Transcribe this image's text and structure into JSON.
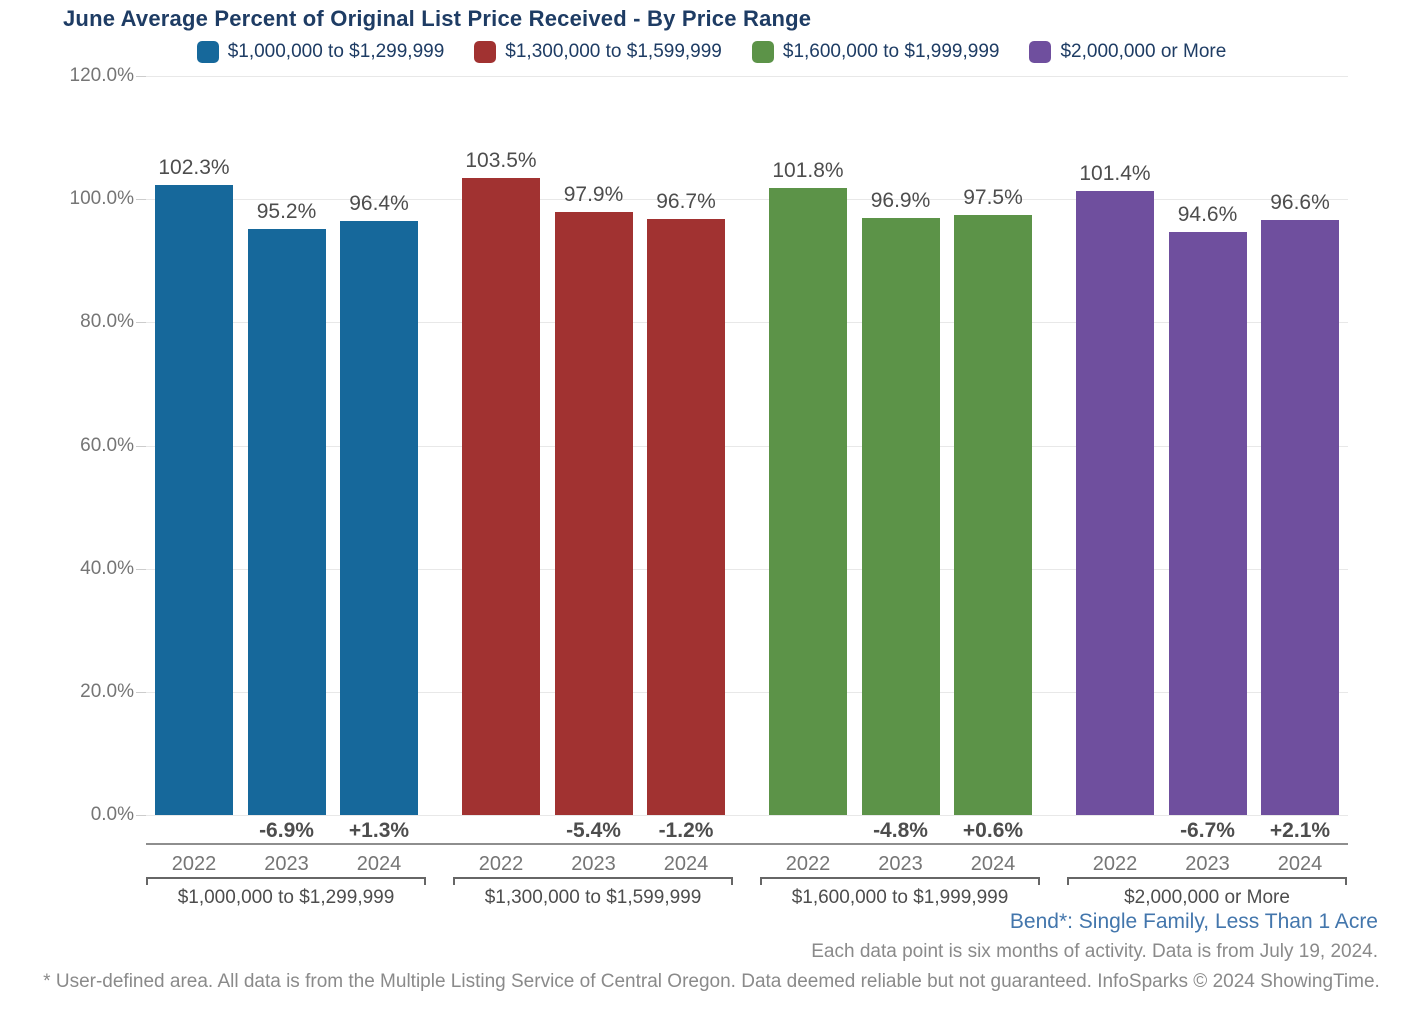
{
  "title": "June Average Percent of Original List Price Received - By Price Range",
  "legend": [
    {
      "label": "$1,000,000 to $1,299,999",
      "color": "#16689b"
    },
    {
      "label": "$1,300,000 to $1,599,999",
      "color": "#a13231"
    },
    {
      "label": "$1,600,000 to $1,999,999",
      "color": "#5c9348"
    },
    {
      "label": "$2,000,000 or More",
      "color": "#6f4f9e"
    }
  ],
  "chart_data": {
    "type": "bar",
    "title": "June Average Percent of Original List Price Received - By Price Range",
    "xlabel": "",
    "ylabel": "",
    "grid": true,
    "legend_position": "top",
    "categories": [
      "2022",
      "2023",
      "2024"
    ],
    "ylim": [
      0,
      120
    ],
    "ytick_step": 20,
    "ytick_labels": [
      "0.0%",
      "20.0%",
      "40.0%",
      "60.0%",
      "80.0%",
      "100.0%",
      "120.0%"
    ],
    "value_suffix": "%",
    "groups": [
      {
        "name": "$1,000,000 to $1,299,999",
        "color": "#16689b",
        "values": [
          102.3,
          95.2,
          96.4
        ],
        "changes": [
          "",
          "-6.9%",
          "+1.3%"
        ]
      },
      {
        "name": "$1,300,000 to $1,599,999",
        "color": "#a13231",
        "values": [
          103.5,
          97.9,
          96.7
        ],
        "changes": [
          "",
          "-5.4%",
          "-1.2%"
        ]
      },
      {
        "name": "$1,600,000 to $1,999,999",
        "color": "#5c9348",
        "values": [
          101.8,
          96.9,
          97.5
        ],
        "changes": [
          "",
          "-4.8%",
          "+0.6%"
        ]
      },
      {
        "name": "$2,000,000 or More",
        "color": "#6f4f9e",
        "values": [
          101.4,
          94.6,
          96.6
        ],
        "changes": [
          "",
          "-6.7%",
          "+2.1%"
        ]
      }
    ]
  },
  "footer": {
    "area_label": "Bend*: Single Family, Less Than 1 Acre",
    "data_note": "Each data point is six months of activity. Data is from July 19, 2024.",
    "disclaimer": "* User-defined area. All data is from the Multiple Listing Service of Central Oregon. Data deemed reliable but not guaranteed. InfoSparks © 2024 ShowingTime."
  }
}
